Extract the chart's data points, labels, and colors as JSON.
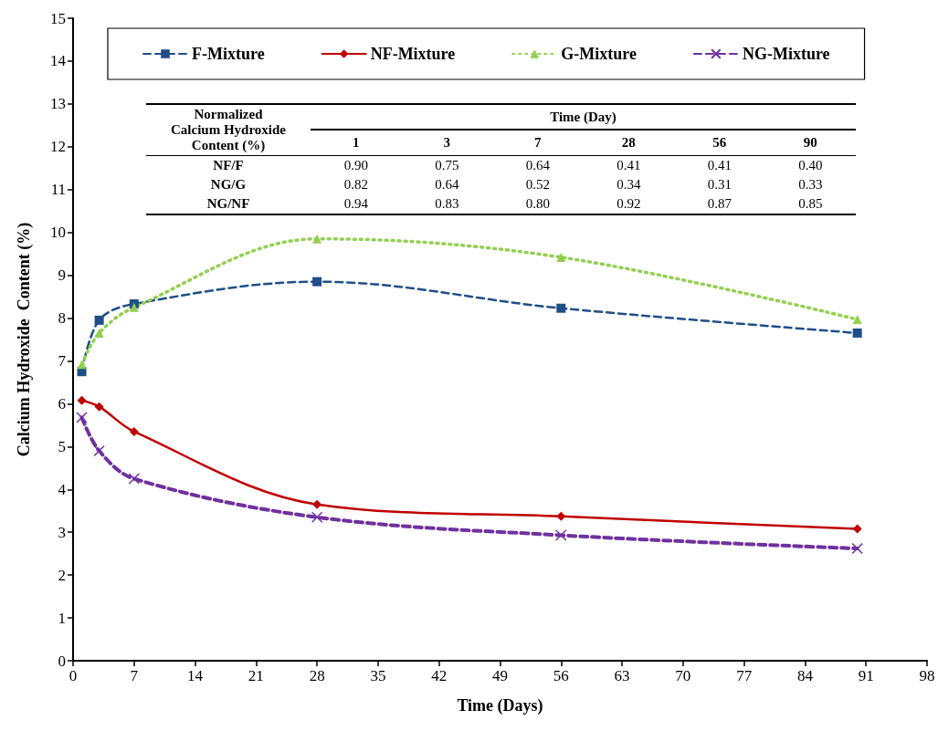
{
  "chart_data": {
    "type": "line",
    "xlabel": "Time (Days)",
    "ylabel": "Calcium Hydroxide  Content (%)",
    "x": [
      1,
      3,
      7,
      28,
      56,
      90
    ],
    "series": [
      {
        "name": "F-Mixture",
        "color": "#1f4e89",
        "marker": "square",
        "line_style": "dashed",
        "values": [
          6.75,
          7.95,
          8.33,
          8.85,
          8.23,
          7.65
        ]
      },
      {
        "name": "NF-Mixture",
        "color": "#c00000",
        "marker": "diamond",
        "line_style": "solid",
        "values": [
          6.08,
          5.93,
          5.35,
          3.65,
          3.37,
          3.08
        ]
      },
      {
        "name": "G-Mixture",
        "color": "#92d050",
        "marker": "triangle",
        "line_style": "dotted",
        "values": [
          6.92,
          7.65,
          8.25,
          9.85,
          9.42,
          7.97
        ]
      },
      {
        "name": "NG-Mixture",
        "color": "#7030a0",
        "marker": "cross",
        "line_style": "dashed",
        "values": [
          5.68,
          4.9,
          4.25,
          3.35,
          2.93,
          2.62
        ]
      }
    ],
    "xlim": [
      0,
      98
    ],
    "xticks": [
      0,
      7,
      14,
      21,
      28,
      35,
      42,
      49,
      56,
      63,
      70,
      77,
      84,
      91,
      98
    ],
    "ylim": [
      0,
      15
    ],
    "yticks": [
      0,
      1,
      2,
      3,
      4,
      5,
      6,
      7,
      8,
      9,
      10,
      11,
      12,
      13,
      14,
      15
    ],
    "grid": false,
    "legend": "top",
    "annotations": [
      "Normalized\nCalcium Hydroxide\nContent (%)",
      "Time (Day)",
      "1",
      "3",
      "7",
      "28",
      "56",
      "90",
      "NF/F",
      "0.90",
      "0.75",
      "0.64",
      "0.41",
      "0.41",
      "0.40",
      "NG/G",
      "0.82",
      "0.64",
      "0.52",
      "0.34",
      "0.31",
      "0.33",
      "NG/NF",
      "0.94",
      "0.83",
      "0.80",
      "0.92",
      "0.87",
      "0.85"
    ]
  }
}
